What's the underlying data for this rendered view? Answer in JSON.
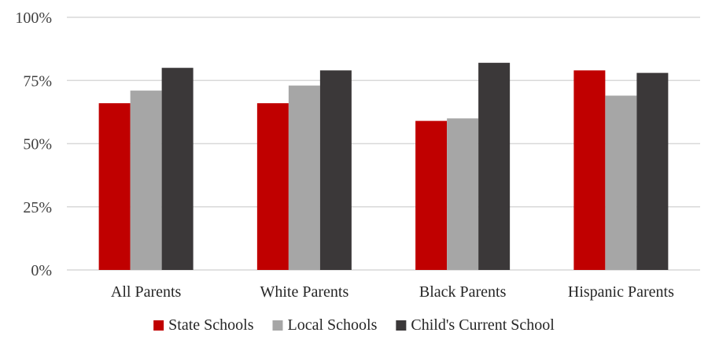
{
  "chart_data": {
    "type": "bar",
    "title": "",
    "xlabel": "",
    "ylabel": "",
    "ylim": [
      0,
      100
    ],
    "yticks": [
      "0%",
      "25%",
      "50%",
      "75%",
      "100%"
    ],
    "ytick_values": [
      0,
      25,
      50,
      75,
      100
    ],
    "categories": [
      "All Parents",
      "White Parents",
      "Black Parents",
      "Hispanic Parents"
    ],
    "series": [
      {
        "name": "State Schools",
        "color": "#c00000",
        "values": [
          66,
          66,
          59,
          79
        ]
      },
      {
        "name": "Local Schools",
        "color": "#a6a6a6",
        "values": [
          71,
          73,
          60,
          69
        ]
      },
      {
        "name": "Child's Current School",
        "color": "#3b3839",
        "values": [
          80,
          79,
          82,
          78
        ]
      }
    ],
    "grid": true,
    "legend_position": "bottom"
  }
}
